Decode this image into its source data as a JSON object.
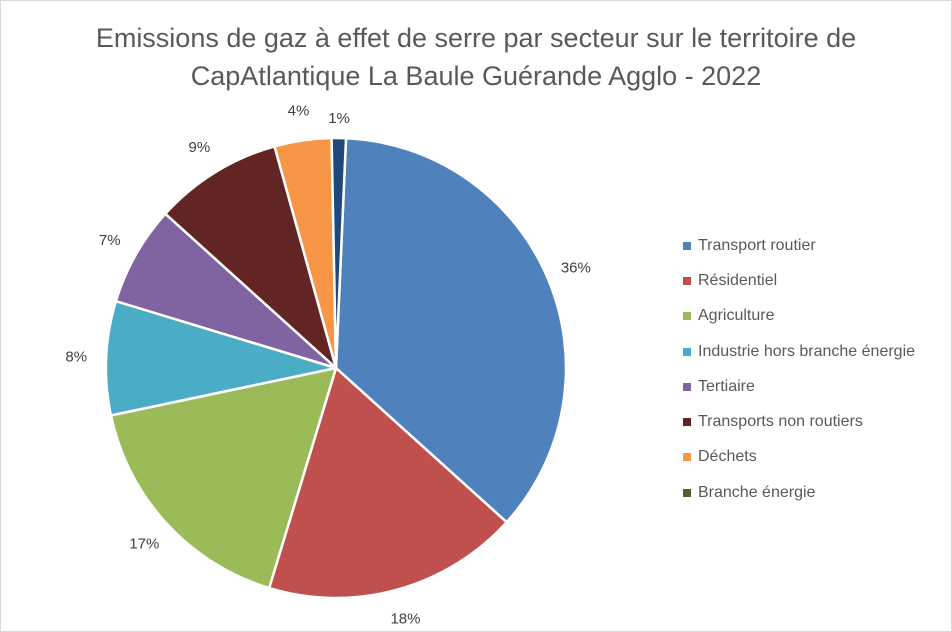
{
  "chart_data": {
    "type": "pie",
    "title_line1": "Emissions de gaz à effet de serre par secteur sur le territoire de",
    "title_line2": "CapAtlantique La Baule Guérande Agglo - 2022",
    "legend_position": "right",
    "slices": [
      {
        "name": "Transport routier",
        "value": 36,
        "label": "36%",
        "color": "#4f81bd",
        "in_legend": true
      },
      {
        "name": "Résidentiel",
        "value": 18,
        "label": "18%",
        "color": "#c0504d",
        "in_legend": true
      },
      {
        "name": "Agriculture",
        "value": 17,
        "label": "17%",
        "color": "#9bbb59",
        "in_legend": true
      },
      {
        "name": "Industrie hors branche énergie",
        "value": 8,
        "label": "8%",
        "color": "#4bacc6",
        "in_legend": true
      },
      {
        "name": "Tertiaire",
        "value": 7,
        "label": "7%",
        "color": "#8064a2",
        "in_legend": true
      },
      {
        "name": "Transports non routiers",
        "value": 9,
        "label": "9%",
        "color": "#632523",
        "in_legend": true
      },
      {
        "name": "Déchets",
        "value": 4,
        "label": "4%",
        "color": "#f79646",
        "in_legend": true
      },
      {
        "name": "Branche énergie",
        "value": 0,
        "label": "",
        "color": "#4f6228",
        "in_legend": true
      },
      {
        "name": "",
        "value": 1,
        "label": "1%",
        "color": "#1f497d",
        "in_legend": false
      }
    ]
  }
}
